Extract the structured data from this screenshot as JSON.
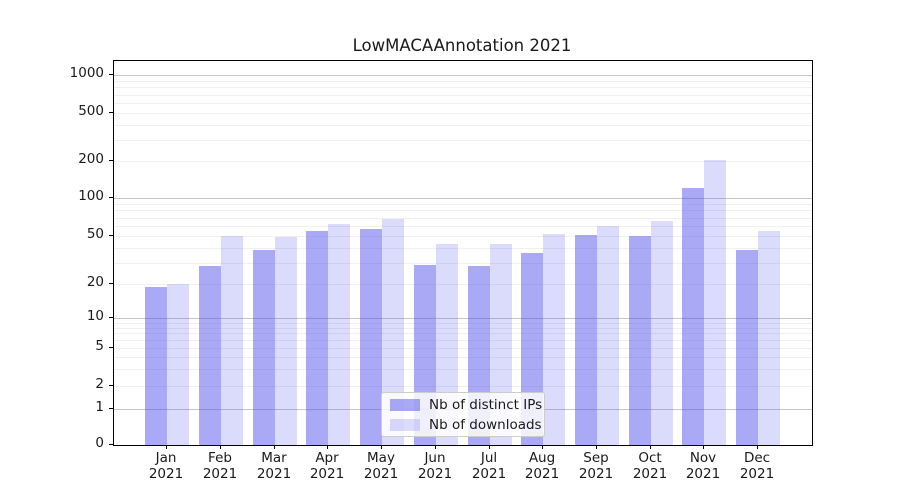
{
  "chart_data": {
    "type": "bar",
    "title": "LowMACAAnnotation 2021",
    "year_label": "2021",
    "categories": [
      "Jan",
      "Feb",
      "Mar",
      "Apr",
      "May",
      "Jun",
      "Jul",
      "Aug",
      "Sep",
      "Oct",
      "Nov",
      "Dec"
    ],
    "series": [
      {
        "name": "Nb of distinct IPs",
        "color": "#a8a8f5",
        "values": [
          19,
          28,
          38,
          55,
          57,
          29,
          28,
          36,
          51,
          50,
          120,
          38
        ]
      },
      {
        "name": "Nb of downloads",
        "color": "#dbdbfa",
        "values": [
          20,
          50,
          49,
          62,
          68,
          43,
          43,
          52,
          60,
          66,
          205,
          55
        ]
      }
    ],
    "xlabel": "",
    "ylabel": "",
    "y_scale": "symlog",
    "y_ticks": [
      0,
      1,
      2,
      5,
      10,
      20,
      50,
      100,
      200,
      500,
      1000
    ],
    "y_major_gridlines": [
      1,
      10,
      100,
      1000
    ],
    "y_minor_gridlines": [
      2,
      3,
      4,
      5,
      6,
      7,
      8,
      9,
      20,
      30,
      40,
      50,
      60,
      70,
      80,
      90,
      200,
      300,
      400,
      500,
      600,
      700,
      800,
      900
    ],
    "ylim": [
      0,
      1200
    ],
    "grid": true,
    "legend_position": "lower center"
  },
  "colors": {
    "bar_ip": "#a8a8f5",
    "bar_downloads": "#dbdbfa",
    "major_grid": "#c6c6c6",
    "minor_grid": "#efefef",
    "text": "#1a1a1a",
    "spine": "#000000"
  }
}
